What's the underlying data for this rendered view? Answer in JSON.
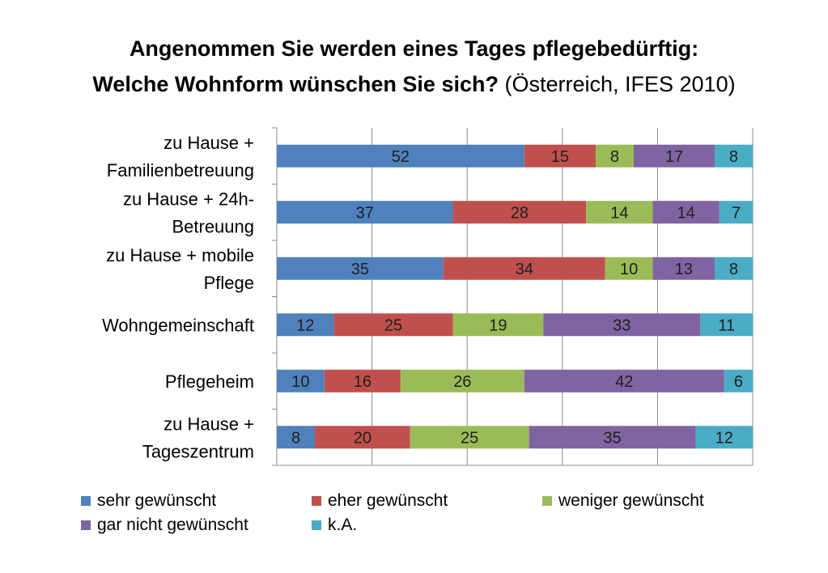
{
  "chart_data": {
    "type": "bar",
    "orientation": "horizontal",
    "stacked": "percent",
    "title_line1": "Angenommen Sie werden eines Tages pflegebedürftig:",
    "title_line2_bold": "Welche Wohnform wünschen Sie sich?",
    "title_line2_normal": " (Österreich, IFES 2010)",
    "categories": [
      [
        "zu Hause +",
        "Familienbetreuung"
      ],
      [
        "zu Hause + 24h-",
        "Betreuung"
      ],
      [
        "zu Hause + mobile",
        "Pflege"
      ],
      [
        "Wohngemeinschaft"
      ],
      [
        "Pflegeheim"
      ],
      [
        "zu Hause +",
        "Tageszentrum"
      ]
    ],
    "series": [
      {
        "name": "sehr gewünscht",
        "color": "#4F81BD",
        "values": [
          52,
          37,
          35,
          12,
          10,
          8
        ]
      },
      {
        "name": "eher gewünscht",
        "color": "#C0504D",
        "values": [
          15,
          28,
          34,
          25,
          16,
          20
        ]
      },
      {
        "name": "weniger gewünscht",
        "color": "#9BBB59",
        "values": [
          8,
          14,
          10,
          19,
          26,
          25
        ]
      },
      {
        "name": "gar nicht gewünscht",
        "color": "#8064A2",
        "values": [
          17,
          14,
          13,
          33,
          42,
          35
        ]
      },
      {
        "name": "k.A.",
        "color": "#4BACC6",
        "values": [
          8,
          7,
          8,
          11,
          6,
          12
        ]
      }
    ],
    "xlim": [
      0,
      100
    ],
    "grid": true,
    "legend_position": "bottom"
  }
}
